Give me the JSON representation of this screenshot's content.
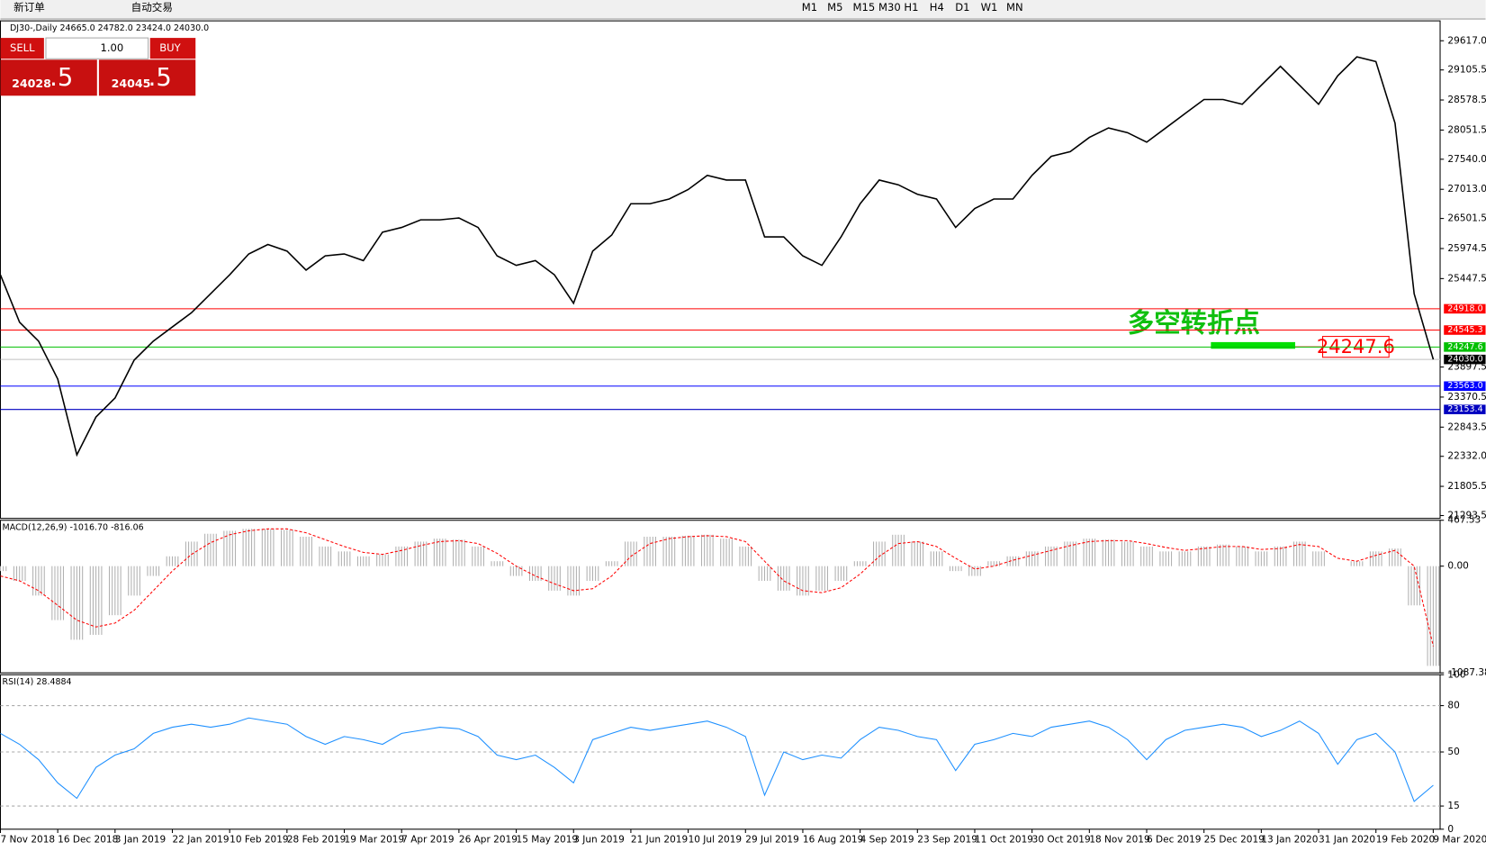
{
  "toolbar": {
    "items": [
      "新订单",
      "自动交易"
    ],
    "timeframes": [
      "M1",
      "M5",
      "M15",
      "M30",
      "H1",
      "H4",
      "D1",
      "W1",
      "MN"
    ]
  },
  "trade_panel": {
    "sell": "SELL",
    "buy": "BUY",
    "volume": "1.00",
    "sell_price": "24028",
    "sell_pip": ".5",
    "buy_price": "24045",
    "buy_pip": ".5"
  },
  "chart_data": [
    {
      "type": "line",
      "title": "DJ30-,Daily  24665.0 24782.0 23424.0 24030.0",
      "categories": [
        "7 Nov 2018",
        null,
        null,
        "16 Dec 2018",
        null,
        null,
        "3 Jan 2019",
        null,
        null,
        "22 Jan 2019",
        null,
        null,
        "10 Feb 2019",
        null,
        null,
        "28 Feb 2019",
        null,
        null,
        "19 Mar 2019",
        null,
        null,
        "7 Apr 2019",
        null,
        null,
        "26 Apr 2019",
        null,
        null,
        "15 May 2019",
        null,
        null,
        "3 Jun 2019",
        null,
        null,
        "21 Jun 2019",
        null,
        null,
        "10 Jul 2019",
        null,
        null,
        "29 Jul 2019",
        null,
        null,
        "16 Aug 2019",
        null,
        null,
        "4 Sep 2019",
        null,
        null,
        "23 Sep 2019",
        null,
        null,
        "11 Oct 2019",
        null,
        null,
        "30 Oct 2019",
        null,
        null,
        "18 Nov 2019",
        null,
        null,
        "6 Dec 2019",
        null,
        null,
        "25 Dec 2019",
        null,
        null,
        "13 Jan 2020",
        null,
        null,
        "31 Jan 2020",
        null,
        null,
        "19 Feb 2020",
        null,
        null,
        "9 Mar 2020"
      ],
      "series": [
        {
          "color": "#000000",
          "values": [
            25513,
            24683,
            24350,
            23686,
            22357,
            23021,
            23354,
            24018,
            24350,
            24600,
            24849,
            25181,
            25513,
            25879,
            26045,
            25929,
            25596,
            25846,
            25879,
            25763,
            26261,
            26344,
            26477,
            26477,
            26510,
            26344,
            25846,
            25680,
            25763,
            25513,
            25015,
            25929,
            26211,
            26759,
            26759,
            26842,
            27009,
            27258,
            27175,
            27175,
            26178,
            26178,
            25846,
            25680,
            26178,
            26759,
            27175,
            27092,
            26926,
            26842,
            26344,
            26676,
            26842,
            26842,
            27258,
            27590,
            27673,
            27922,
            28089,
            28005,
            27839,
            28089,
            28338,
            28587,
            28587,
            28504,
            28836,
            29168,
            28836,
            28504,
            29002,
            29335,
            29251,
            28172,
            25181,
            24030
          ]
        }
      ],
      "ylim": [
        21244,
        29966
      ],
      "yticks": [
        {
          "value": 29617,
          "label": "29617.0"
        },
        {
          "value": 29105.5,
          "label": "29105.5"
        },
        {
          "value": 28578.5,
          "label": "28578.5"
        },
        {
          "value": 28051.5,
          "label": "28051.5"
        },
        {
          "value": 27540,
          "label": "27540.0"
        },
        {
          "value": 27013,
          "label": "27013.0"
        },
        {
          "value": 26501.5,
          "label": "26501.5"
        },
        {
          "value": 25974.5,
          "label": "25974.5"
        },
        {
          "value": 25447.5,
          "label": "25447.5"
        },
        {
          "value": 23897.5,
          "label": "23897.5"
        },
        {
          "value": 23370.5,
          "label": "23370.5"
        },
        {
          "value": 22843.5,
          "label": "22843.5"
        },
        {
          "value": 22332,
          "label": "22332.0"
        },
        {
          "value": 21805.5,
          "label": "21805.5"
        },
        {
          "value": 21293.5,
          "label": "21293.5"
        }
      ],
      "levels": [
        {
          "value": 24918,
          "label": "24918.0",
          "color": "#ff0000"
        },
        {
          "value": 24545.3,
          "label": "24545.3",
          "color": "#ff0000"
        },
        {
          "value": 24247.6,
          "label": "24247.6",
          "color": "#00c000"
        },
        {
          "value": 24030,
          "label": "24030.0",
          "color": "#000000"
        },
        {
          "value": 23563,
          "label": "23563.0",
          "color": "#0000ff"
        },
        {
          "value": 23153.4,
          "label": "23153.4",
          "color": "#0000c0"
        }
      ],
      "annotations": {
        "text": "多空转折点",
        "price_label": "24247.6"
      }
    },
    {
      "type": "bar",
      "title": "MACD(12,26,9) -1016.70 -816.06",
      "series": [
        {
          "color": "#b0b0b0",
          "values": [
            -50,
            -150,
            -300,
            -550,
            -750,
            -700,
            -500,
            -300,
            -100,
            100,
            250,
            330,
            360,
            380,
            380,
            370,
            300,
            200,
            150,
            100,
            120,
            200,
            250,
            280,
            270,
            200,
            50,
            -100,
            -150,
            -250,
            -300,
            -150,
            50,
            250,
            300,
            300,
            310,
            320,
            280,
            200,
            -150,
            -250,
            -300,
            -250,
            -150,
            50,
            250,
            320,
            250,
            150,
            -50,
            -100,
            50,
            100,
            150,
            200,
            250,
            280,
            270,
            250,
            200,
            150,
            150,
            200,
            220,
            200,
            150,
            200,
            250,
            150,
            0,
            50,
            150,
            180,
            -400,
            -1016.7
          ]
        },
        {
          "type": "line",
          "color": "#ff0000",
          "values": [
            -100,
            -150,
            -250,
            -400,
            -550,
            -620,
            -580,
            -450,
            -250,
            -50,
            120,
            240,
            320,
            360,
            380,
            380,
            340,
            270,
            200,
            140,
            120,
            160,
            210,
            250,
            260,
            230,
            130,
            0,
            -100,
            -180,
            -250,
            -230,
            -100,
            100,
            230,
            280,
            300,
            310,
            300,
            250,
            50,
            -150,
            -250,
            -270,
            -220,
            -80,
            100,
            230,
            250,
            200,
            80,
            -30,
            0,
            60,
            110,
            160,
            210,
            250,
            260,
            260,
            230,
            190,
            160,
            180,
            200,
            200,
            170,
            180,
            220,
            200,
            80,
            50,
            110,
            160,
            0,
            -816.06
          ]
        }
      ],
      "ylim": [
        -1087.38,
        467.53
      ],
      "yticks": [
        467.53,
        {
          "value": 0,
          "label": "0.00"
        },
        -1087.38
      ]
    },
    {
      "type": "line",
      "title": "RSI(14) 28.4884",
      "series": [
        {
          "color": "#1e90ff",
          "values": [
            62,
            55,
            45,
            30,
            20,
            40,
            48,
            52,
            62,
            66,
            68,
            66,
            68,
            72,
            70,
            68,
            60,
            55,
            60,
            58,
            55,
            62,
            64,
            66,
            65,
            60,
            48,
            45,
            48,
            40,
            30,
            58,
            62,
            66,
            64,
            66,
            68,
            70,
            66,
            60,
            22,
            50,
            45,
            48,
            46,
            58,
            66,
            64,
            60,
            58,
            38,
            55,
            58,
            62,
            60,
            66,
            68,
            70,
            66,
            58,
            45,
            58,
            64,
            66,
            68,
            66,
            60,
            64,
            70,
            62,
            42,
            58,
            62,
            50,
            18,
            28.4884
          ]
        }
      ],
      "ylim": [
        0,
        100
      ],
      "yticks": [
        100,
        80,
        50,
        15,
        0
      ],
      "grid": [
        80,
        50,
        15
      ]
    }
  ]
}
